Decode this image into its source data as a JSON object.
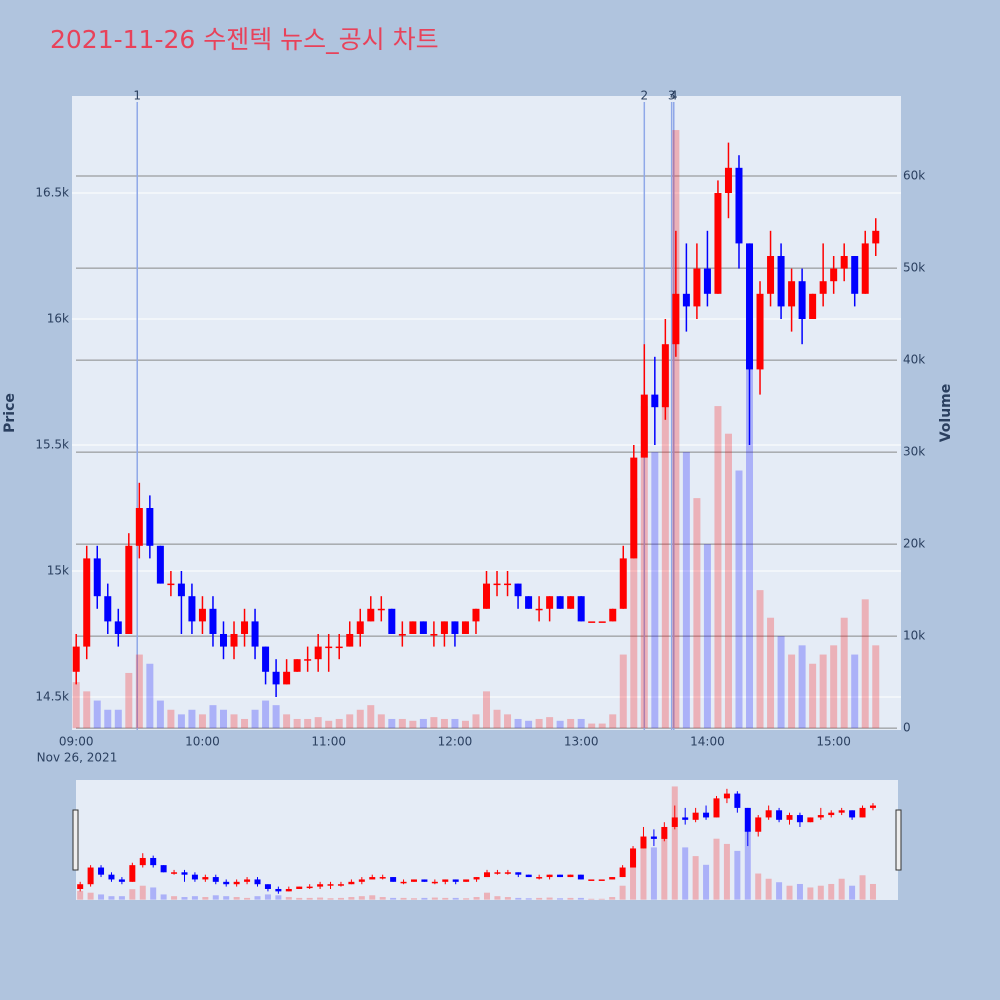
{
  "chart_data": {
    "type": "candlestick",
    "title": "2021-11-26 수젠텍 뉴스_공시 차트",
    "y_label": "Price",
    "y2_label": "Volume",
    "x_sublabel": "Nov 26, 2021",
    "xlim": [
      "08:58",
      "15:32"
    ],
    "xticks": [
      "09:00",
      "10:00",
      "11:00",
      "12:00",
      "13:00",
      "14:00",
      "15:00"
    ],
    "ylim": [
      14369,
      16885
    ],
    "yticks": [
      {
        "value": 14500,
        "label": "14.5k"
      },
      {
        "value": 15000,
        "label": "15k"
      },
      {
        "value": 15500,
        "label": "15.5k"
      },
      {
        "value": 16000,
        "label": "16k"
      },
      {
        "value": 16500,
        "label": "16.5k"
      }
    ],
    "y2lim": [
      -200,
      68700
    ],
    "y2ticks": [
      0,
      {
        "value": 10000,
        "label": "10k"
      },
      {
        "value": 20000,
        "label": "20k"
      },
      {
        "value": 30000,
        "label": "30k"
      },
      {
        "value": 40000,
        "label": "40k"
      },
      {
        "value": 50000,
        "label": "50k"
      },
      {
        "value": 60000,
        "label": "60k"
      }
    ],
    "up_color": "#ff0000",
    "down_color": "#0000ff",
    "annotations": [
      {
        "x": "09:29",
        "label": "1"
      },
      {
        "x": "13:30",
        "label": "2"
      },
      {
        "x": "13:43",
        "label": "3"
      },
      {
        "x": "13:44",
        "label": "4"
      }
    ],
    "x": [
      "09:00",
      "09:05",
      "09:10",
      "09:15",
      "09:20",
      "09:25",
      "09:30",
      "09:35",
      "09:40",
      "09:45",
      "09:50",
      "09:55",
      "10:00",
      "10:05",
      "10:10",
      "10:15",
      "10:20",
      "10:25",
      "10:30",
      "10:35",
      "10:40",
      "10:45",
      "10:50",
      "10:55",
      "11:00",
      "11:05",
      "11:10",
      "11:15",
      "11:20",
      "11:25",
      "11:30",
      "11:35",
      "11:40",
      "11:45",
      "11:50",
      "11:55",
      "12:00",
      "12:05",
      "12:10",
      "12:15",
      "12:20",
      "12:25",
      "12:30",
      "12:35",
      "12:40",
      "12:45",
      "12:50",
      "12:55",
      "13:00",
      "13:05",
      "13:10",
      "13:15",
      "13:20",
      "13:25",
      "13:30",
      "13:35",
      "13:40",
      "13:45",
      "13:50",
      "13:55",
      "14:00",
      "14:05",
      "14:10",
      "14:15",
      "14:20",
      "14:25",
      "14:30",
      "14:35",
      "14:40",
      "14:45",
      "14:50",
      "14:55",
      "15:00",
      "15:05",
      "15:10",
      "15:15",
      "15:20"
    ],
    "open": [
      14600,
      14700,
      15050,
      14900,
      14800,
      14750,
      15100,
      15250,
      15100,
      14950,
      14950,
      14900,
      14800,
      14850,
      14750,
      14700,
      14750,
      14800,
      14700,
      14600,
      14550,
      14600,
      14650,
      14650,
      14700,
      14700,
      14700,
      14750,
      14800,
      14850,
      14850,
      14750,
      14750,
      14800,
      14750,
      14750,
      14800,
      14750,
      14800,
      14850,
      14950,
      14950,
      14950,
      14900,
      14850,
      14850,
      14900,
      14850,
      14900,
      14800,
      14800,
      14800,
      14850,
      15050,
      15450,
      15700,
      15650,
      15900,
      16100,
      16050,
      16200,
      16100,
      16500,
      16600,
      16300,
      15800,
      16100,
      16250,
      16050,
      16150,
      16000,
      16100,
      16150,
      16200,
      16250,
      16100,
      16300
    ],
    "high": [
      14750,
      15100,
      15100,
      14950,
      14850,
      15150,
      15350,
      15300,
      15100,
      15000,
      15000,
      14950,
      14900,
      14900,
      14800,
      14800,
      14850,
      14850,
      14700,
      14650,
      14650,
      14650,
      14700,
      14750,
      14750,
      14750,
      14800,
      14850,
      14900,
      14900,
      14850,
      14800,
      14800,
      14800,
      14800,
      14800,
      14800,
      14800,
      14850,
      15000,
      15000,
      15000,
      14950,
      14900,
      14900,
      14900,
      14900,
      14900,
      14900,
      14800,
      14800,
      14850,
      15100,
      15500,
      15900,
      15850,
      16000,
      16350,
      16300,
      16300,
      16350,
      16550,
      16700,
      16650,
      16300,
      16150,
      16350,
      16300,
      16200,
      16200,
      16100,
      16300,
      16250,
      16300,
      16250,
      16350,
      16400
    ],
    "low": [
      14550,
      14650,
      14850,
      14750,
      14700,
      14750,
      15050,
      15050,
      14950,
      14900,
      14750,
      14750,
      14750,
      14700,
      14650,
      14650,
      14700,
      14650,
      14550,
      14500,
      14550,
      14600,
      14600,
      14600,
      14600,
      14650,
      14700,
      14700,
      14800,
      14800,
      14750,
      14700,
      14750,
      14750,
      14700,
      14700,
      14700,
      14750,
      14750,
      14850,
      14900,
      14900,
      14850,
      14850,
      14800,
      14800,
      14850,
      14850,
      14800,
      14800,
      14800,
      14800,
      14850,
      15050,
      15450,
      15500,
      15600,
      15850,
      15950,
      16000,
      16050,
      16100,
      16400,
      16200,
      15500,
      15700,
      16050,
      16000,
      15950,
      15900,
      16000,
      16050,
      16100,
      16150,
      16050,
      16100,
      16250
    ],
    "close": [
      14700,
      15050,
      14900,
      14800,
      14750,
      15100,
      15250,
      15100,
      14950,
      14950,
      14900,
      14800,
      14850,
      14750,
      14700,
      14750,
      14800,
      14700,
      14600,
      14550,
      14600,
      14650,
      14650,
      14700,
      14700,
      14700,
      14750,
      14800,
      14850,
      14850,
      14750,
      14750,
      14800,
      14750,
      14750,
      14800,
      14750,
      14800,
      14850,
      14950,
      14950,
      14950,
      14900,
      14850,
      14850,
      14900,
      14850,
      14900,
      14800,
      14800,
      14800,
      14850,
      15050,
      15450,
      15700,
      15650,
      15900,
      16100,
      16050,
      16200,
      16100,
      16500,
      16600,
      16300,
      15800,
      16100,
      16250,
      16050,
      16150,
      16000,
      16100,
      16150,
      16200,
      16250,
      16100,
      16300,
      16350
    ],
    "volume": [
      5000,
      4000,
      3000,
      2000,
      2000,
      6000,
      8000,
      7000,
      3000,
      2000,
      1500,
      2000,
      1500,
      2500,
      2000,
      1500,
      1000,
      2000,
      3000,
      2500,
      1500,
      1000,
      1000,
      1200,
      800,
      1000,
      1500,
      2000,
      2500,
      1500,
      1000,
      1000,
      800,
      1000,
      1200,
      1000,
      1000,
      800,
      1500,
      4000,
      2000,
      1500,
      1000,
      800,
      1000,
      1200,
      800,
      1000,
      1000,
      500,
      500,
      1500,
      8000,
      25000,
      35000,
      30000,
      40000,
      65000,
      30000,
      25000,
      20000,
      35000,
      32000,
      28000,
      40000,
      15000,
      12000,
      10000,
      8000,
      9000,
      7000,
      8000,
      9000,
      12000,
      8000,
      14000,
      9000
    ]
  }
}
